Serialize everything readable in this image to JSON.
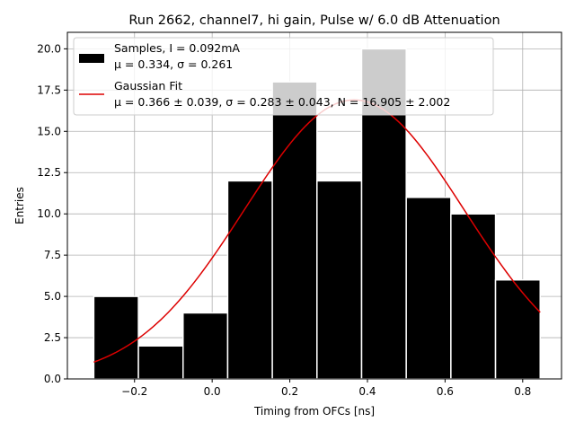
{
  "chart_data": {
    "type": "bar",
    "title": "Run 2662, channel7, hi gain, Pulse w/ 6.0 dB Attenuation",
    "xlabel": "Timing from OFCs [ns]",
    "ylabel": "Entries",
    "xlim": [
      -0.373,
      0.9
    ],
    "ylim": [
      0,
      21
    ],
    "xticks": [
      -0.2,
      0.0,
      0.2,
      0.4,
      0.6,
      0.8
    ],
    "xtick_labels": [
      "−0.2",
      "0.0",
      "0.2",
      "0.4",
      "0.6",
      "0.8"
    ],
    "yticks": [
      0,
      2.5,
      5,
      7.5,
      10,
      12.5,
      15,
      17.5,
      20
    ],
    "ytick_labels": [
      "0.0",
      "2.5",
      "5.0",
      "7.5",
      "10.0",
      "12.5",
      "15.0",
      "17.5",
      "20.0"
    ],
    "grid": true,
    "legend_position": "top-left",
    "bins": [
      {
        "x0": -0.305,
        "x1": -0.19,
        "value": 5
      },
      {
        "x0": -0.19,
        "x1": -0.075,
        "value": 2
      },
      {
        "x0": -0.075,
        "x1": 0.04,
        "value": 4
      },
      {
        "x0": 0.04,
        "x1": 0.155,
        "value": 12
      },
      {
        "x0": 0.155,
        "x1": 0.27,
        "value": 18
      },
      {
        "x0": 0.27,
        "x1": 0.385,
        "value": 12
      },
      {
        "x0": 0.385,
        "x1": 0.5,
        "value": 20
      },
      {
        "x0": 0.5,
        "x1": 0.615,
        "value": 11
      },
      {
        "x0": 0.615,
        "x1": 0.73,
        "value": 10
      },
      {
        "x0": 0.73,
        "x1": 0.845,
        "value": 6
      }
    ],
    "gray_bins": [
      {
        "x0": 0.155,
        "x1": 0.27,
        "value": 18
      },
      {
        "x0": 0.385,
        "x1": 0.5,
        "value": 20
      }
    ],
    "fit": {
      "mu": 0.366,
      "sigma": 0.283,
      "N": 16.905,
      "x_range": [
        -0.305,
        0.845
      ],
      "color": "#dd0000"
    },
    "legend": {
      "samples_line1": "Samples, I = 0.092mA",
      "samples_line2": "μ = 0.334, σ = 0.261",
      "fit_line1": "Gaussian Fit",
      "fit_line2": "μ = 0.366 ± 0.039, σ = 0.283 ± 0.043, N = 16.905 ± 2.002"
    },
    "colors": {
      "bar": "#000000",
      "bar_gray": "#c8c8c8",
      "bar_edge": "#ffffff",
      "grid": "#b0b0b0",
      "fit": "#dd0000"
    }
  }
}
